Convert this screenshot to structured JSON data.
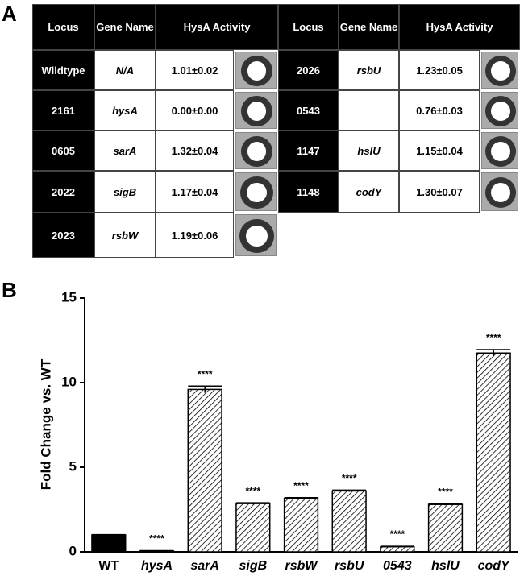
{
  "panels": [
    "A",
    "B"
  ],
  "table": {
    "header": [
      "Locus",
      "Gene Name",
      "HysA Activity"
    ],
    "left_rows": [
      [
        "Wildtype",
        "N/A",
        "1.01±0.02"
      ],
      [
        "2161",
        "hysA",
        "0.00±0.00"
      ],
      [
        "0605",
        "sarA",
        "1.32±0.04"
      ],
      [
        "2022",
        "sigB",
        "1.17±0.04"
      ],
      [
        "2023",
        "rsbW",
        "1.19±0.06"
      ]
    ],
    "right_rows": [
      [
        "2026",
        "rsbU",
        "1.23±0.05"
      ],
      [
        "0543",
        null,
        "0.76±0.03"
      ],
      [
        "1147",
        "hslU",
        "1.15±0.04"
      ],
      [
        "1148",
        "codY",
        "1.30±0.07"
      ]
    ]
  },
  "chart_data": {
    "type": "bar",
    "y_label": "Fold Change vs. WT",
    "categories": [
      "WT",
      "hysA",
      "sarA",
      "sigB",
      "rsbW",
      "rsbU",
      "0543",
      "hslU",
      "codY"
    ],
    "values": [
      1.0,
      0.05,
      9.6,
      2.85,
      3.15,
      3.6,
      0.3,
      2.8,
      11.75
    ],
    "errors": [
      0.02,
      0.02,
      0.2,
      0.05,
      0.05,
      0.05,
      0.03,
      0.05,
      0.2
    ],
    "fills": [
      "solid",
      "hatch",
      "hatch",
      "hatch",
      "hatch",
      "hatch",
      "hatch",
      "hatch",
      "hatch"
    ],
    "annotations": [
      null,
      "****",
      "****",
      "****",
      "****",
      "****",
      "****",
      "****",
      "****"
    ],
    "color": "#000000",
    "ylim": [
      0,
      15
    ],
    "yticks": [
      0,
      5,
      10,
      15
    ]
  }
}
